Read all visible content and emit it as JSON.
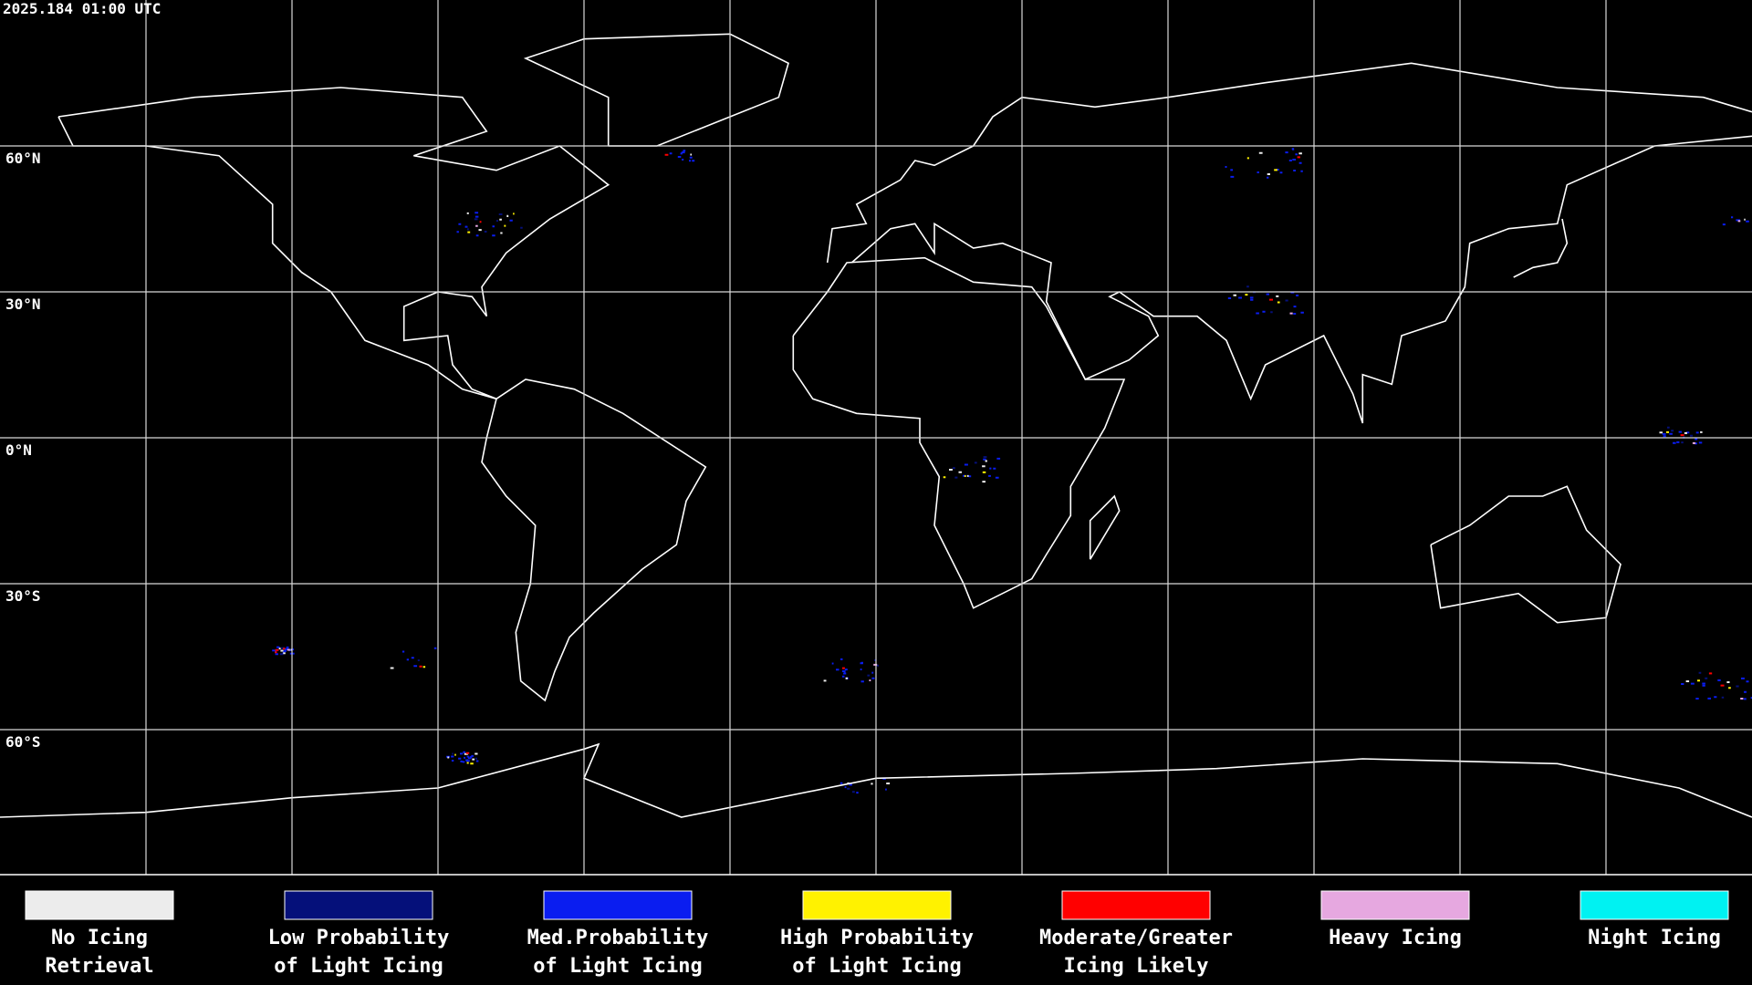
{
  "header": {
    "timestamp": "2025.184 01:00 UTC"
  },
  "map": {
    "latitude_labels": [
      "60°N",
      "30°N",
      "0°N",
      "30°S",
      "60°S"
    ]
  },
  "legend": [
    {
      "color": "#ececec",
      "lines": [
        "No Icing",
        "Retrieval"
      ]
    },
    {
      "color": "#05107a",
      "lines": [
        "Low Probability",
        "of Light Icing"
      ]
    },
    {
      "color": "#0a1df0",
      "lines": [
        "Med.Probability",
        "of Light Icing"
      ]
    },
    {
      "color": "#fff200",
      "lines": [
        "High Probability",
        "of Light Icing"
      ]
    },
    {
      "color": "#ff0000",
      "lines": [
        "Moderate/Greater",
        "Icing Likely"
      ]
    },
    {
      "color": "#e6a8e0",
      "lines": [
        "Heavy Icing"
      ]
    },
    {
      "color": "#00f2f2",
      "lines": [
        "Night Icing"
      ]
    }
  ]
}
